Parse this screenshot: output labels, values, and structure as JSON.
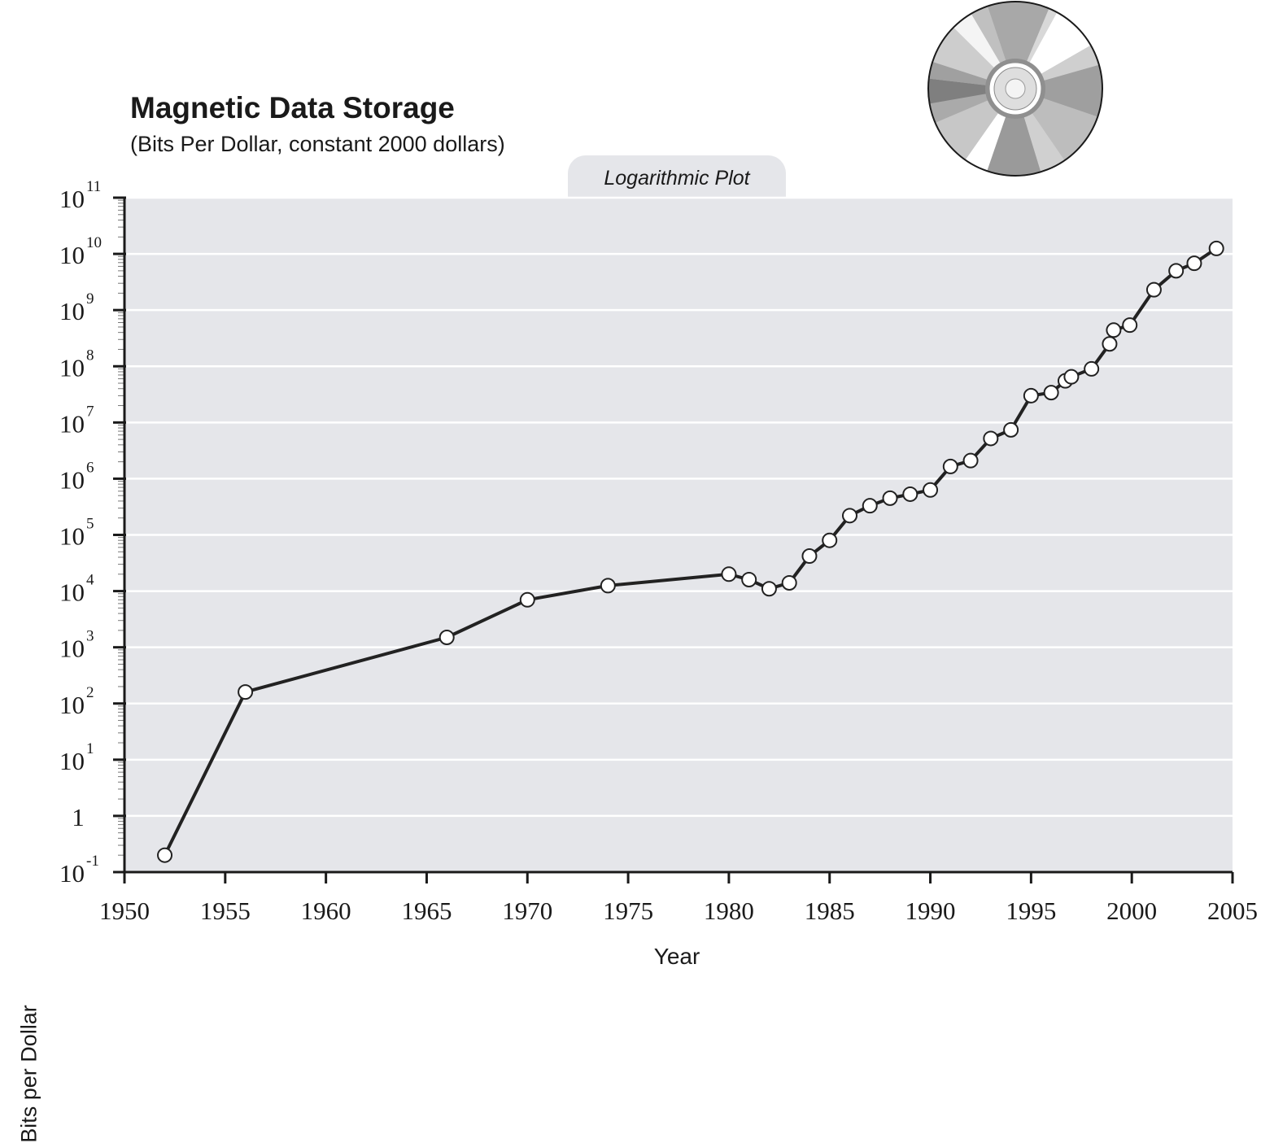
{
  "chart_data": {
    "type": "line",
    "title": "Magnetic Data Storage",
    "subtitle": "(Bits Per Dollar, constant 2000 dollars)",
    "annotation": "Logarithmic Plot",
    "xlabel": "Year",
    "ylabel": "Bits per Dollar",
    "yscale": "log",
    "xlim": [
      1950,
      2005
    ],
    "ylim": [
      0.1,
      100000000000
    ],
    "grid": true,
    "x_ticks": [
      1950,
      1955,
      1960,
      1965,
      1970,
      1975,
      1980,
      1985,
      1990,
      1995,
      2000,
      2005
    ],
    "x_tick_labels": [
      "1950",
      "1955",
      "1960",
      "1965",
      "1970",
      "1975",
      "1980",
      "1985",
      "1990",
      "1995",
      "2000",
      "2005"
    ],
    "y_ticks": [
      {
        "value": 0.1,
        "base": "10",
        "exp": "-1"
      },
      {
        "value": 1,
        "base": "1",
        "exp": ""
      },
      {
        "value": 10,
        "base": "10",
        "exp": "1"
      },
      {
        "value": 100,
        "base": "10",
        "exp": "2"
      },
      {
        "value": 1000,
        "base": "10",
        "exp": "3"
      },
      {
        "value": 10000,
        "base": "10",
        "exp": "4"
      },
      {
        "value": 100000,
        "base": "10",
        "exp": "5"
      },
      {
        "value": 1000000,
        "base": "10",
        "exp": "6"
      },
      {
        "value": 10000000,
        "base": "10",
        "exp": "7"
      },
      {
        "value": 100000000,
        "base": "10",
        "exp": "8"
      },
      {
        "value": 1000000000,
        "base": "10",
        "exp": "9"
      },
      {
        "value": 10000000000,
        "base": "10",
        "exp": "10"
      },
      {
        "value": 100000000000,
        "base": "10",
        "exp": "11"
      }
    ],
    "series": [
      {
        "values": [
          {
            "x": 1952,
            "y": 0.2
          },
          {
            "x": 1956,
            "y": 160
          },
          {
            "x": 1966,
            "y": 1500
          },
          {
            "x": 1970,
            "y": 7000
          },
          {
            "x": 1974,
            "y": 12500
          },
          {
            "x": 1980,
            "y": 20000
          },
          {
            "x": 1981,
            "y": 16000
          },
          {
            "x": 1982,
            "y": 11000
          },
          {
            "x": 1983,
            "y": 14000
          },
          {
            "x": 1984,
            "y": 42000
          },
          {
            "x": 1985,
            "y": 80000
          },
          {
            "x": 1986,
            "y": 220000
          },
          {
            "x": 1987,
            "y": 330000
          },
          {
            "x": 1988,
            "y": 450000
          },
          {
            "x": 1989,
            "y": 530000
          },
          {
            "x": 1990,
            "y": 630000
          },
          {
            "x": 1991,
            "y": 1650000
          },
          {
            "x": 1992,
            "y": 2100000
          },
          {
            "x": 1993,
            "y": 5200000
          },
          {
            "x": 1994,
            "y": 7400000
          },
          {
            "x": 1995,
            "y": 30000000
          },
          {
            "x": 1996,
            "y": 34000000
          },
          {
            "x": 1996.7,
            "y": 55000000
          },
          {
            "x": 1997,
            "y": 65000000
          },
          {
            "x": 1998,
            "y": 90000000
          },
          {
            "x": 1998.9,
            "y": 250000000
          },
          {
            "x": 1999.1,
            "y": 440000000
          },
          {
            "x": 1999.9,
            "y": 540000000
          },
          {
            "x": 2001.1,
            "y": 2300000000
          },
          {
            "x": 2002.2,
            "y": 5000000000
          },
          {
            "x": 2003.1,
            "y": 6800000000
          },
          {
            "x": 2004.2,
            "y": 12500000000
          }
        ]
      }
    ],
    "colors": {
      "plot_background": "#e5e6ea",
      "grid": "#ffffff",
      "line": "#222222",
      "marker_fill": "#ffffff",
      "axis": "#1a1a1a"
    },
    "decoration_icon": "compact-disc-icon"
  }
}
